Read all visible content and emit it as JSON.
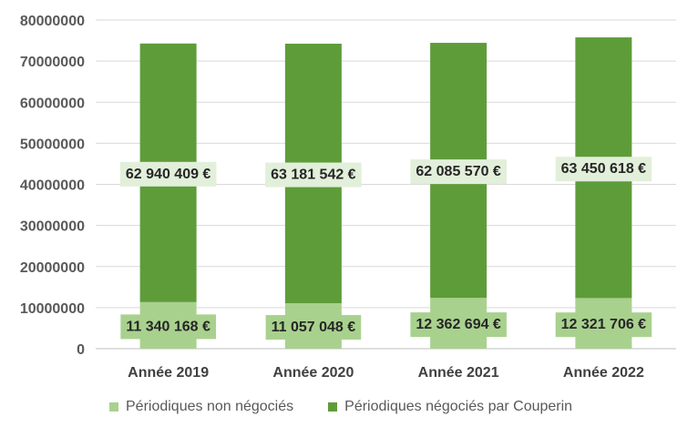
{
  "chart_data": {
    "type": "bar",
    "stacked": true,
    "categories": [
      "Année 2019",
      "Année 2020",
      "Année 2021",
      "Année 2022"
    ],
    "series": [
      {
        "name": "Périodiques non négociés",
        "values": [
          11340168,
          11057048,
          12362694,
          12321706
        ],
        "color": "#a9d18e",
        "labels": [
          "11 340 168 €",
          "11 057 048 €",
          "12 362 694 €",
          "12 321 706 €"
        ]
      },
      {
        "name": "Périodiques négociés par Couperin",
        "values": [
          62940409,
          63181542,
          62085570,
          63450618
        ],
        "color": "#5e9c3a",
        "labels": [
          "62 940 409 €",
          "63 181 542 €",
          "62 085 570 €",
          "63 450 618 €"
        ]
      }
    ],
    "y_ticks": [
      "0",
      "10000000",
      "20000000",
      "30000000",
      "40000000",
      "50000000",
      "60000000",
      "70000000",
      "80000000"
    ],
    "ylim": [
      0,
      80000000
    ],
    "grid": true,
    "legend_position": "bottom",
    "label_box_colors": {
      "lower": "#a9d18e",
      "upper": "#e2efda"
    }
  }
}
